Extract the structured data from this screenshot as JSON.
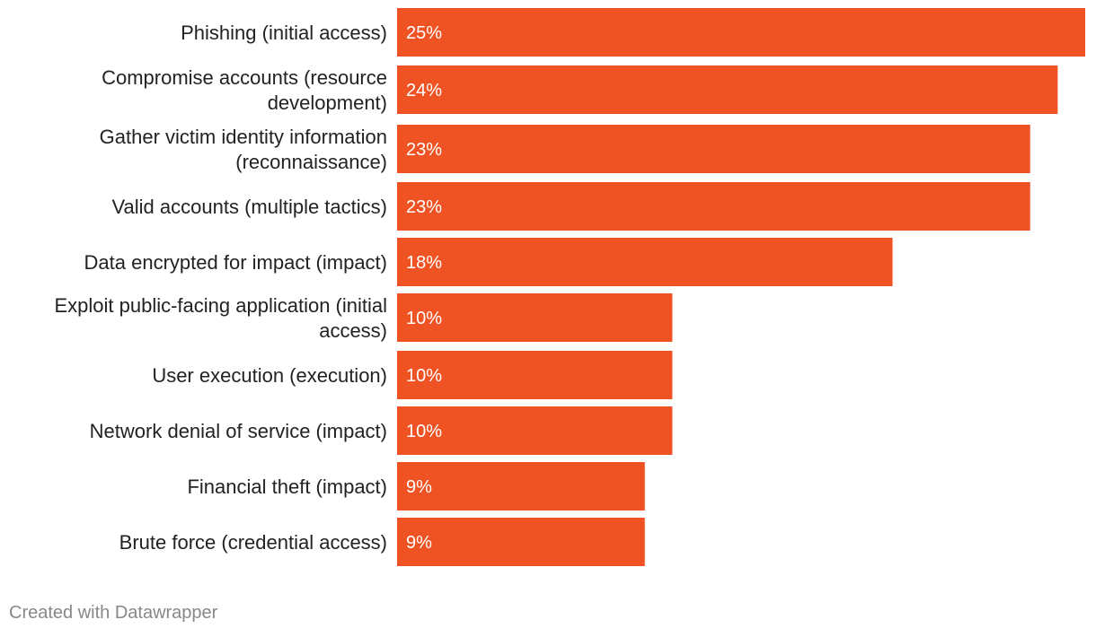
{
  "chart_data": {
    "type": "bar",
    "orientation": "horizontal",
    "categories": [
      "Phishing (initial access)",
      "Compromise accounts (resource development)",
      "Gather victim identity information (reconnaissance)",
      "Valid accounts (multiple tactics)",
      "Data encrypted for impact (impact)",
      "Exploit public-facing application (initial access)",
      "User execution (execution)",
      "Network denial of service (impact)",
      "Financial theft (impact)",
      "Brute force (credential access)"
    ],
    "category_lines": [
      [
        "Phishing (initial access)"
      ],
      [
        "Compromise accounts (resource",
        "development)"
      ],
      [
        "Gather victim identity information",
        "(reconnaissance)"
      ],
      [
        "Valid accounts (multiple tactics)"
      ],
      [
        "Data encrypted for impact (impact)"
      ],
      [
        "Exploit public-facing application (initial",
        "access)"
      ],
      [
        "User execution (execution)"
      ],
      [
        "Network denial of service (impact)"
      ],
      [
        "Financial theft (impact)"
      ],
      [
        "Brute force (credential access)"
      ]
    ],
    "values": [
      25,
      24,
      23,
      23,
      18,
      10,
      10,
      10,
      9,
      9
    ],
    "value_labels": [
      "25%",
      "24%",
      "23%",
      "23%",
      "18%",
      "10%",
      "10%",
      "10%",
      "9%",
      "9%"
    ],
    "xlim": [
      0,
      25
    ],
    "grid": false,
    "legend": "none",
    "bar_color": "#ef5323"
  },
  "footer": {
    "credit": "Created with Datawrapper"
  }
}
